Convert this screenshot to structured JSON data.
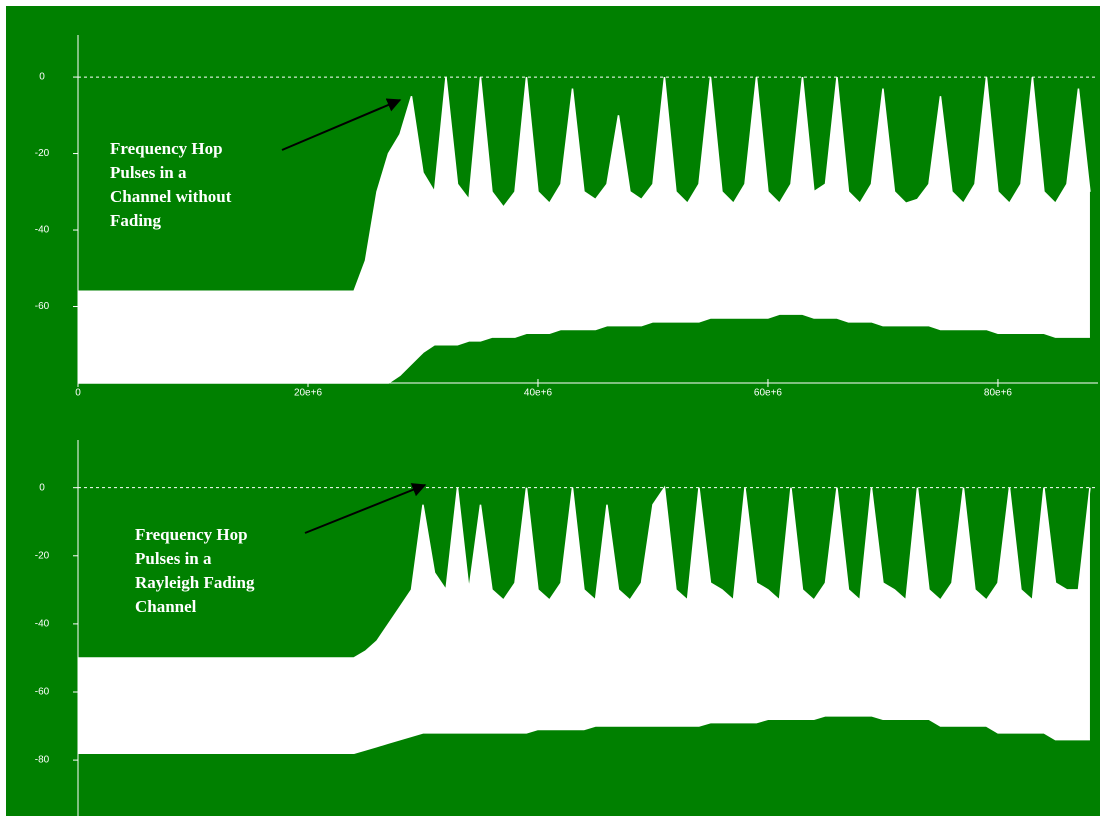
{
  "chart_data": [
    {
      "type": "area",
      "background": "#008000",
      "ylim": [
        -80,
        11
      ],
      "yticks": [
        0,
        -20,
        -40,
        -60
      ],
      "ref_line": 0,
      "xlim": [
        0,
        88700000
      ],
      "xticks": [
        0,
        {
          "value": 20000000,
          "label": "20e+6"
        },
        {
          "value": 40000000,
          "label": "40e+6"
        },
        {
          "value": 60000000,
          "label": "60e+6"
        },
        {
          "value": 80000000,
          "label": "80e+6"
        }
      ],
      "annotation": [
        "Frequency Hop",
        "Pulses in a",
        "Channel without",
        "Fading"
      ],
      "x": [
        0,
        1000000,
        2000000,
        3000000,
        4000000,
        5000000,
        6000000,
        7000000,
        8000000,
        9000000,
        10000000,
        11000000,
        12000000,
        13000000,
        14000000,
        15000000,
        16000000,
        17000000,
        18000000,
        19000000,
        20000000,
        21000000,
        22000000,
        23000000,
        24000000,
        25000000,
        26000000,
        27000000,
        28000000,
        29000000,
        30000000,
        31000000,
        32000000,
        33000000,
        34000000,
        35000000,
        36000000,
        37000000,
        38000000,
        39000000,
        40000000,
        41000000,
        42000000,
        43000000,
        44000000,
        45000000,
        46000000,
        47000000,
        48000000,
        49000000,
        50000000,
        51000000,
        52000000,
        53000000,
        54000000,
        55000000,
        56000000,
        57000000,
        58000000,
        59000000,
        60000000,
        61000000,
        62000000,
        63000000,
        64000000,
        65000000,
        66000000,
        67000000,
        68000000,
        69000000,
        70000000,
        71000000,
        72000000,
        73000000,
        74000000,
        75000000,
        76000000,
        77000000,
        78000000,
        79000000,
        80000000,
        81000000,
        82000000,
        83000000,
        84000000,
        85000000,
        86000000,
        87000000,
        88000000
      ],
      "series": [
        {
          "color": "#ffffff",
          "values": [
            -56,
            -56,
            -56,
            -56,
            -56,
            -56,
            -56,
            -56,
            -56,
            -56,
            -56,
            -56,
            -56,
            -56,
            -56,
            -56,
            -56,
            -56,
            -56,
            -56,
            -56,
            -56,
            -56,
            -56,
            -56,
            -48,
            -30,
            -20,
            -15,
            -5,
            -25,
            -30,
            0,
            -28,
            -32,
            0,
            -30,
            -34,
            -30,
            0,
            -30,
            -33,
            -28,
            -3,
            -30,
            -32,
            -28,
            -10,
            -30,
            -32,
            -28,
            0,
            -30,
            -33,
            -28,
            0,
            -30,
            -33,
            -28,
            0,
            -30,
            -33,
            -28,
            0,
            -30,
            -28,
            0,
            -30,
            -33,
            -28,
            -3,
            -30,
            -33,
            -32,
            -28,
            -5,
            -30,
            -33,
            -28,
            0,
            -30,
            -33,
            -28,
            0,
            -30,
            -33,
            -28,
            -3,
            -30
          ]
        },
        {
          "color": "#ffffff",
          "values": [
            -80,
            -80,
            -80,
            -80,
            -80,
            -80,
            -80,
            -80,
            -80,
            -80,
            -80,
            -80,
            -80,
            -80,
            -80,
            -80,
            -80,
            -80,
            -80,
            -80,
            -80,
            -80,
            -80,
            -80,
            -80,
            -80,
            -80,
            -80,
            -78,
            -75,
            -72,
            -70,
            -70,
            -70,
            -69,
            -69,
            -68,
            -68,
            -68,
            -67,
            -67,
            -67,
            -66,
            -66,
            -66,
            -66,
            -65,
            -65,
            -65,
            -65,
            -64,
            -64,
            -64,
            -64,
            -64,
            -63,
            -63,
            -63,
            -63,
            -63,
            -63,
            -62,
            -62,
            -62,
            -63,
            -63,
            -63,
            -64,
            -64,
            -64,
            -65,
            -65,
            -65,
            -65,
            -65,
            -66,
            -66,
            -66,
            -66,
            -66,
            -67,
            -67,
            -67,
            -67,
            -67,
            -68,
            -68,
            -68,
            -68
          ]
        }
      ]
    },
    {
      "type": "area",
      "background": "#008000",
      "ylim": [
        -97,
        14
      ],
      "yticks": [
        0,
        -20,
        -40,
        -60,
        -80
      ],
      "ref_line": 0,
      "xlim": [
        0,
        88700000
      ],
      "annotation": [
        "Frequency Hop",
        "Pulses in a",
        "Rayleigh Fading",
        "Channel"
      ],
      "x": [
        0,
        1000000,
        2000000,
        3000000,
        4000000,
        5000000,
        6000000,
        7000000,
        8000000,
        9000000,
        10000000,
        11000000,
        12000000,
        13000000,
        14000000,
        15000000,
        16000000,
        17000000,
        18000000,
        19000000,
        20000000,
        21000000,
        22000000,
        23000000,
        24000000,
        25000000,
        26000000,
        27000000,
        28000000,
        29000000,
        30000000,
        31000000,
        32000000,
        33000000,
        34000000,
        35000000,
        36000000,
        37000000,
        38000000,
        39000000,
        40000000,
        41000000,
        42000000,
        43000000,
        44000000,
        45000000,
        46000000,
        47000000,
        48000000,
        49000000,
        50000000,
        51000000,
        52000000,
        53000000,
        54000000,
        55000000,
        56000000,
        57000000,
        58000000,
        59000000,
        60000000,
        61000000,
        62000000,
        63000000,
        64000000,
        65000000,
        66000000,
        67000000,
        68000000,
        69000000,
        70000000,
        71000000,
        72000000,
        73000000,
        74000000,
        75000000,
        76000000,
        77000000,
        78000000,
        79000000,
        80000000,
        81000000,
        82000000,
        83000000,
        84000000,
        85000000,
        86000000,
        87000000,
        88000000
      ],
      "series": [
        {
          "color": "#ffffff",
          "values": [
            -50,
            -50,
            -50,
            -50,
            -50,
            -50,
            -50,
            -50,
            -50,
            -50,
            -50,
            -50,
            -50,
            -50,
            -50,
            -50,
            -50,
            -50,
            -50,
            -50,
            -50,
            -50,
            -50,
            -50,
            -50,
            -48,
            -45,
            -40,
            -35,
            -30,
            -5,
            -25,
            -30,
            0,
            -30,
            -5,
            -30,
            -33,
            -28,
            0,
            -30,
            -33,
            -28,
            0,
            -30,
            -33,
            -5,
            -30,
            -33,
            -28,
            -5,
            0,
            -30,
            -33,
            0,
            -28,
            -30,
            -33,
            0,
            -28,
            -30,
            -33,
            0,
            -30,
            -33,
            -28,
            0,
            -30,
            -33,
            0,
            -28,
            -30,
            -33,
            0,
            -30,
            -33,
            -28,
            0,
            -30,
            -33,
            -28,
            0,
            -30,
            -33,
            0,
            -28,
            -30,
            -30,
            0
          ]
        },
        {
          "color": "#ffffff",
          "values": [
            -78,
            -78,
            -78,
            -78,
            -78,
            -78,
            -78,
            -78,
            -78,
            -78,
            -78,
            -78,
            -78,
            -78,
            -78,
            -78,
            -78,
            -78,
            -78,
            -78,
            -78,
            -78,
            -78,
            -78,
            -78,
            -77,
            -76,
            -75,
            -74,
            -73,
            -72,
            -72,
            -72,
            -72,
            -72,
            -72,
            -72,
            -72,
            -72,
            -72,
            -71,
            -71,
            -71,
            -71,
            -71,
            -70,
            -70,
            -70,
            -70,
            -70,
            -70,
            -70,
            -70,
            -70,
            -70,
            -69,
            -69,
            -69,
            -69,
            -69,
            -68,
            -68,
            -68,
            -68,
            -68,
            -67,
            -67,
            -67,
            -67,
            -67,
            -68,
            -68,
            -68,
            -68,
            -68,
            -70,
            -70,
            -70,
            -70,
            -70,
            -72,
            -72,
            -72,
            -72,
            -72,
            -74,
            -74,
            -74,
            -74
          ]
        }
      ]
    }
  ]
}
